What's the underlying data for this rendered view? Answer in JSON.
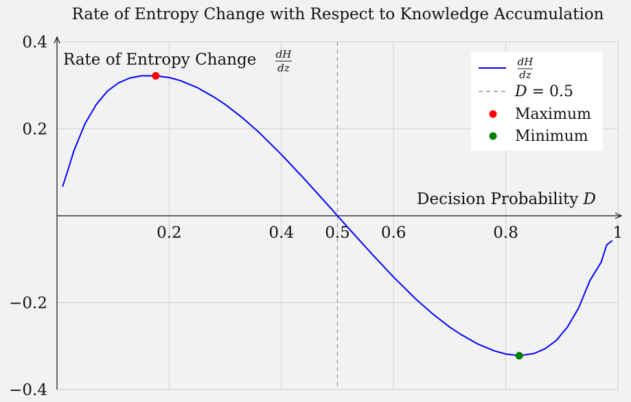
{
  "chart_data": {
    "type": "line",
    "title": "Rate of Entropy Change with Respect to Knowledge Accumulation",
    "xlabel": "Decision Probability",
    "xlabel_symbol": "D",
    "ylabel": "Rate of Entropy Change",
    "ylabel_frac_num": "dH",
    "ylabel_frac_den": "dz",
    "xlim": [
      0,
      1
    ],
    "ylim": [
      -0.4,
      0.4
    ],
    "x_ticks": [
      0.2,
      0.4,
      0.5,
      0.6,
      0.8,
      1
    ],
    "x_tick_labels": [
      "0.2",
      "0.4",
      "0.5",
      "0.6",
      "0.8",
      "1"
    ],
    "y_ticks": [
      -0.4,
      -0.2,
      0.2,
      0.4
    ],
    "y_tick_labels": [
      "−0.4",
      "−0.2",
      "0.2",
      "0.4"
    ],
    "grid": true,
    "legend_position": "top-right",
    "series": [
      {
        "name": "dH/dz",
        "color": "#0000ff",
        "x": [
          0.01,
          0.02,
          0.03,
          0.05,
          0.07,
          0.09,
          0.11,
          0.13,
          0.15,
          0.176,
          0.2,
          0.22,
          0.25,
          0.28,
          0.3,
          0.33,
          0.36,
          0.4,
          0.44,
          0.48,
          0.5,
          0.52,
          0.56,
          0.6,
          0.64,
          0.67,
          0.7,
          0.72,
          0.75,
          0.78,
          0.8,
          0.824,
          0.85,
          0.87,
          0.89,
          0.91,
          0.93,
          0.95,
          0.97,
          0.98,
          0.99
        ],
        "y": [
          0.067,
          0.107,
          0.149,
          0.212,
          0.256,
          0.287,
          0.306,
          0.317,
          0.322,
          0.322,
          0.318,
          0.311,
          0.295,
          0.273,
          0.256,
          0.226,
          0.192,
          0.141,
          0.086,
          0.029,
          0.0,
          -0.029,
          -0.086,
          -0.141,
          -0.192,
          -0.226,
          -0.256,
          -0.273,
          -0.295,
          -0.311,
          -0.318,
          -0.322,
          -0.317,
          -0.306,
          -0.287,
          -0.256,
          -0.212,
          -0.149,
          -0.107,
          -0.067,
          -0.057
        ]
      }
    ],
    "vline": {
      "x": 0.5,
      "name": "D = 0.5",
      "color": "#999999"
    },
    "points": [
      {
        "name": "Maximum",
        "x": 0.176,
        "y": 0.322,
        "color": "#ff0000"
      },
      {
        "name": "Minimum",
        "x": 0.824,
        "y": -0.322,
        "color": "#008000"
      }
    ],
    "legend": {
      "curve_num": "dH",
      "curve_den": "dz",
      "vline_var": "D",
      "vline_rest": " = 0.5",
      "maximum": "Maximum",
      "minimum": "Minimum"
    }
  }
}
